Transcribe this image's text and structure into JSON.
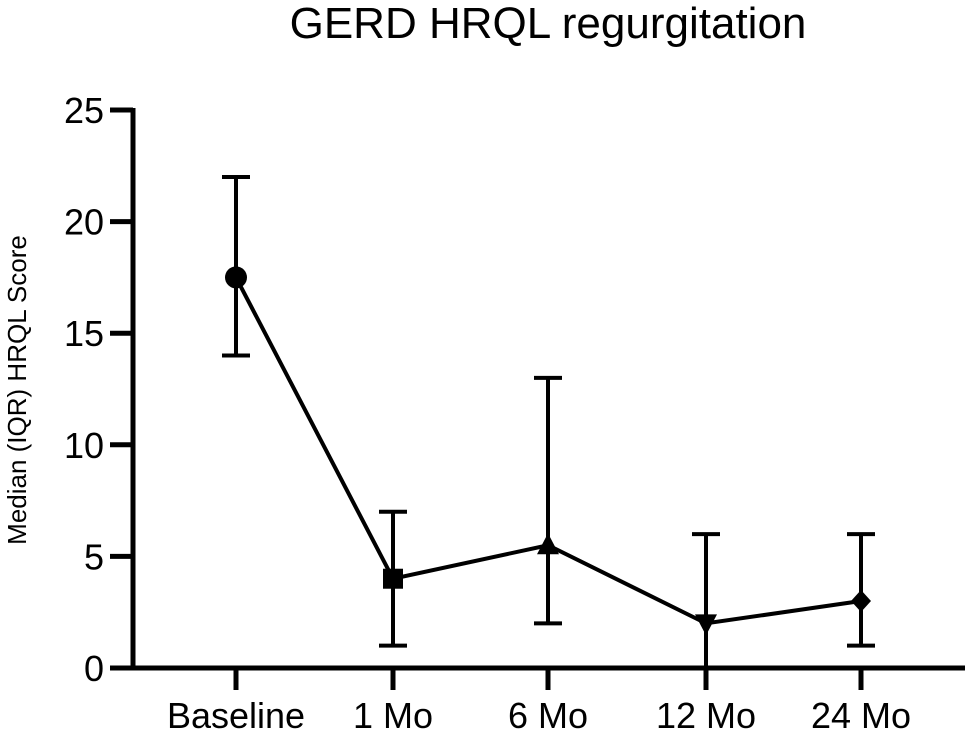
{
  "chart_data": {
    "type": "line",
    "title": "GERD HRQL regurgitation",
    "xlabel": "",
    "ylabel": "Median (IQR) HRQL Score",
    "ylim": [
      0,
      25
    ],
    "yticks": [
      0,
      5,
      10,
      15,
      20,
      25
    ],
    "categories": [
      "Baseline",
      "1 Mo",
      "6 Mo",
      "12 Mo",
      "24 Mo"
    ],
    "series": [
      {
        "values": [
          17.5,
          4,
          5.5,
          2,
          3
        ],
        "error_low": [
          14,
          1,
          2,
          0,
          1
        ],
        "error_high": [
          22,
          7,
          13,
          6,
          6
        ],
        "markers": [
          "circle",
          "square",
          "triangle-up",
          "triangle-down",
          "diamond"
        ],
        "color": "#000000"
      }
    ],
    "grid": false,
    "legend": "none"
  }
}
